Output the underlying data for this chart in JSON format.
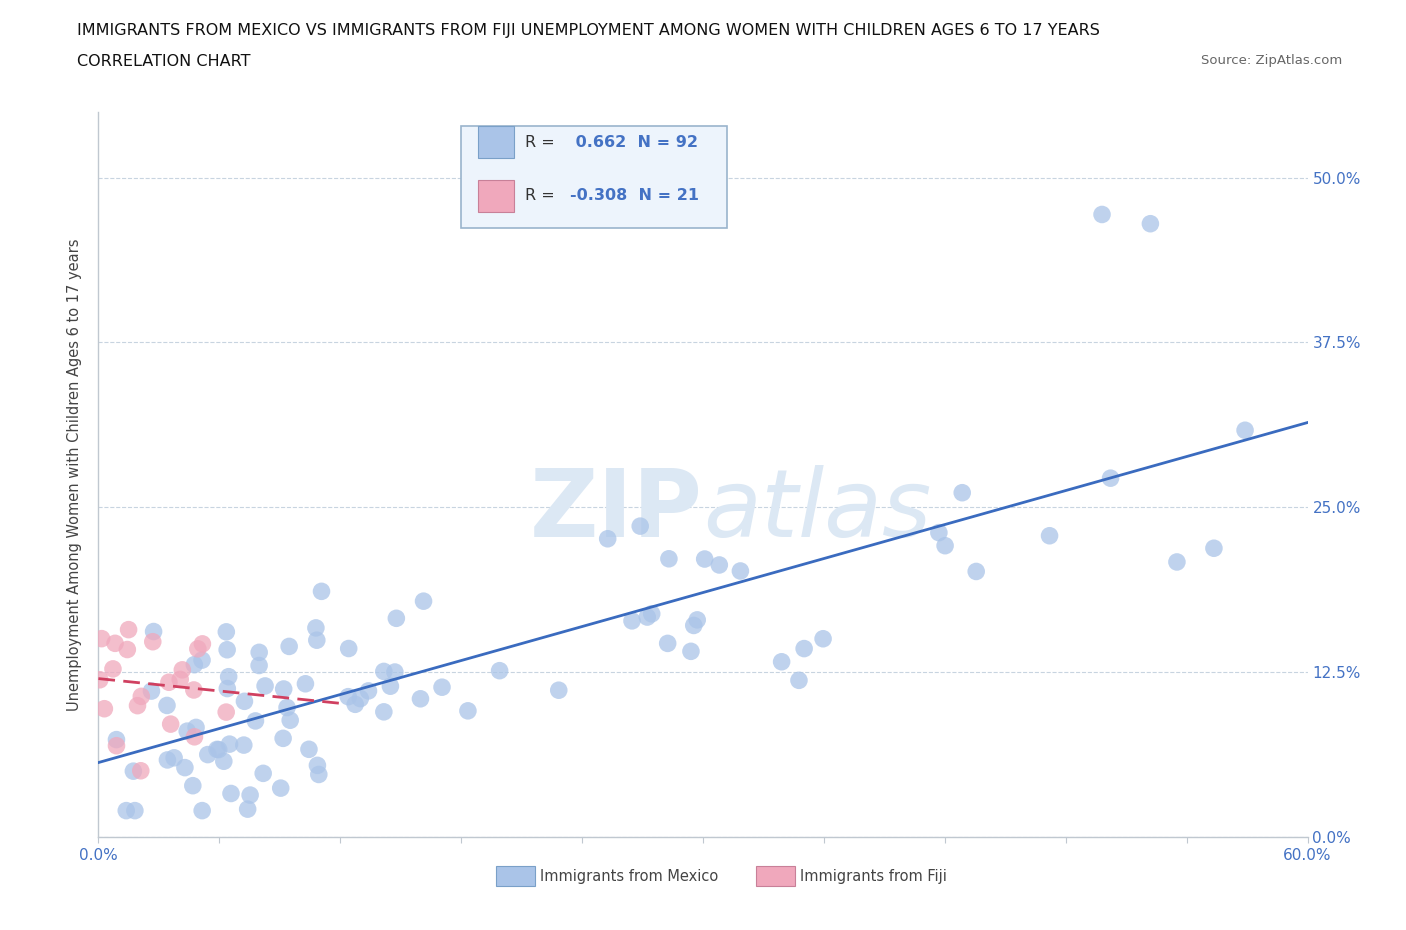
{
  "title_line1": "IMMIGRANTS FROM MEXICO VS IMMIGRANTS FROM FIJI UNEMPLOYMENT AMONG WOMEN WITH CHILDREN AGES 6 TO 17 YEARS",
  "title_line2": "CORRELATION CHART",
  "source_text": "Source: ZipAtlas.com",
  "ylabel": "Unemployment Among Women with Children Ages 6 to 17 years",
  "xlim": [
    0.0,
    0.6
  ],
  "ylim": [
    0.0,
    0.55
  ],
  "xticks": [
    0.0,
    0.06,
    0.12,
    0.18,
    0.24,
    0.3,
    0.36,
    0.42,
    0.48,
    0.54,
    0.6
  ],
  "yticks": [
    0.0,
    0.125,
    0.25,
    0.375,
    0.5
  ],
  "ytick_labels": [
    "0.0%",
    "12.5%",
    "25.0%",
    "37.5%",
    "50.0%"
  ],
  "mexico_color": "#aac4e8",
  "fiji_color": "#f0a8bc",
  "mexico_line_color": "#3a6bbf",
  "fiji_line_color": "#d04060",
  "R_mexico": 0.662,
  "N_mexico": 92,
  "R_fiji": -0.308,
  "N_fiji": 21,
  "background_color": "#ffffff",
  "grid_color": "#c8d4e0",
  "tick_color": "#4472c4",
  "axis_color": "#c0c8d0",
  "watermark_color": "#dce8f4",
  "legend_face": "#edf4fc",
  "legend_edge": "#9ab4cc"
}
